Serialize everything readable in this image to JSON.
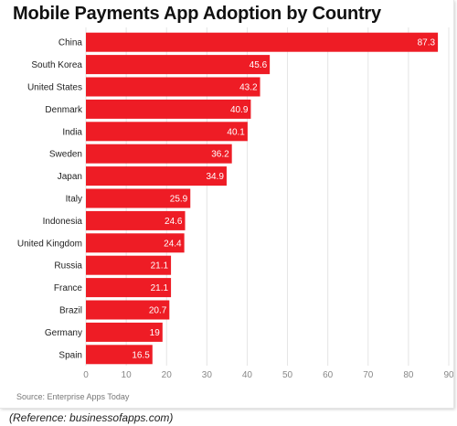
{
  "chart_data": {
    "type": "bar",
    "orientation": "horizontal",
    "title": "Mobile Payments App Adoption by Country",
    "categories": [
      "China",
      "South Korea",
      "United States",
      "Denmark",
      "India",
      "Sweden",
      "Japan",
      "Italy",
      "Indonesia",
      "United Kingdom",
      "Russia",
      "France",
      "Brazil",
      "Germany",
      "Spain"
    ],
    "values": [
      87.3,
      45.6,
      43.2,
      40.9,
      40.1,
      36.2,
      34.9,
      25.9,
      24.6,
      24.4,
      21.1,
      21.1,
      20.7,
      19,
      16.5
    ],
    "value_labels": [
      "87.3",
      "45.6",
      "43.2",
      "40.9",
      "40.1",
      "36.2",
      "34.9",
      "25.9",
      "24.6",
      "24.4",
      "21.1",
      "21.1",
      "20.7",
      "19",
      "16.5"
    ],
    "xlim": [
      0,
      90
    ],
    "x_ticks": [
      0,
      10,
      20,
      30,
      40,
      50,
      60,
      70,
      80,
      90
    ],
    "xlabel": "",
    "ylabel": "",
    "grid": true,
    "bar_color": "#ee1c25",
    "grid_color": "#e4e4e4"
  },
  "source": "Source: Enterprise Apps Today",
  "reference": "(Reference: businessofapps.com)"
}
